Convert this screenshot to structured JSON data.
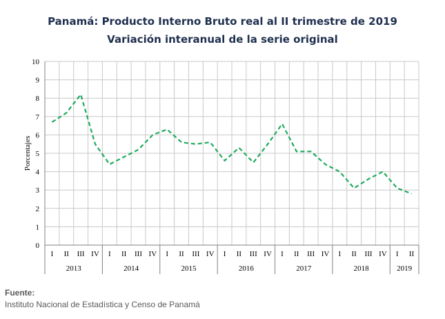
{
  "title": "Panamá: Producto Interno Bruto real al II trimestre de 2019",
  "subtitle": "Variación interanual de la serie original",
  "footer": {
    "label": "Fuente:",
    "text": "Instituto Nacional de Estadística y Censo de Panamá"
  },
  "chart_data": {
    "type": "line",
    "ylabel": "Porcentajes",
    "ylim": [
      0,
      10
    ],
    "yticks": [
      0,
      1,
      2,
      3,
      4,
      5,
      6,
      7,
      8,
      9,
      10
    ],
    "grid": true,
    "line_color": "#1daa5b",
    "line_style": "dashed",
    "years": [
      {
        "label": "2013",
        "quarters": [
          "I",
          "II",
          "III",
          "IV"
        ]
      },
      {
        "label": "2014",
        "quarters": [
          "I",
          "II",
          "III",
          "IV"
        ]
      },
      {
        "label": "2015",
        "quarters": [
          "I",
          "II",
          "III",
          "IV"
        ]
      },
      {
        "label": "2016",
        "quarters": [
          "I",
          "II",
          "III",
          "IV"
        ]
      },
      {
        "label": "2017",
        "quarters": [
          "I",
          "II",
          "III",
          "IV"
        ]
      },
      {
        "label": "2018",
        "quarters": [
          "I",
          "II",
          "III",
          "IV"
        ]
      },
      {
        "label": "2019",
        "quarters": [
          "I",
          "II"
        ]
      }
    ],
    "series": [
      {
        "values": [
          6.7,
          7.2,
          8.2,
          5.5,
          4.4,
          4.8,
          5.2,
          6.0,
          6.3,
          5.6,
          5.5,
          5.6,
          4.6,
          5.3,
          4.5,
          5.5,
          6.6,
          5.1,
          5.1,
          4.4,
          4.0,
          3.1,
          3.6,
          4.0,
          3.1,
          2.8
        ]
      }
    ]
  }
}
